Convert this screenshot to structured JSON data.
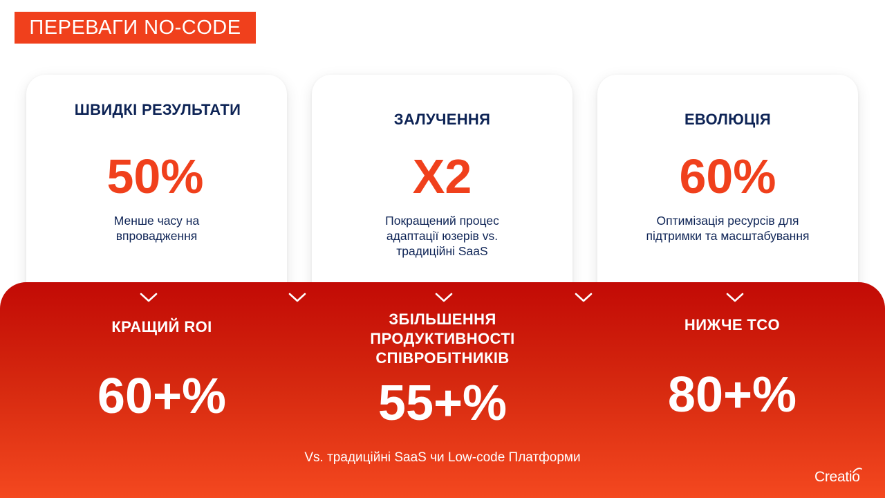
{
  "title": "ПЕРЕВАГИ NO-CODE",
  "cards": [
    {
      "title": "ШВИДКІ РЕЗУЛЬТАТИ",
      "value": "50%",
      "desc_lines": [
        "Менше часу на",
        "впровадження"
      ]
    },
    {
      "title": "ЗАЛУЧЕННЯ",
      "value": "X2",
      "desc_lines": [
        "Покращений процес",
        "адаптації юзерів vs.",
        "традиційні SaaS"
      ]
    },
    {
      "title": "ЕВОЛЮЦІЯ",
      "value": "60%",
      "desc_lines": [
        "Оптимізація ресурсів для",
        "підтримки та масштабування"
      ]
    }
  ],
  "benefits": [
    {
      "title_lines": [
        "КРАЩИЙ ROI"
      ],
      "value": "60+%"
    },
    {
      "title_lines": [
        "ЗБІЛЬШЕННЯ",
        "ПРОДУКТИВНОСТІ",
        "СПІВРОБІТНИКІВ"
      ],
      "value": "55+%"
    },
    {
      "title_lines": [
        "НИЖЧЕ TCO"
      ],
      "value": "80+%"
    }
  ],
  "footnote": "Vs. традиційні SaaS чи Low-code Платформи",
  "logo": "Creatio",
  "colors": {
    "accent": "#f0401c",
    "navy": "#0d2355",
    "panel_top": "#c20a05",
    "panel_bottom": "#f4481f"
  },
  "icons": [
    "chevron-down-icon",
    "chevron-down-icon",
    "chevron-down-icon",
    "chevron-down-icon",
    "chevron-down-icon"
  ]
}
